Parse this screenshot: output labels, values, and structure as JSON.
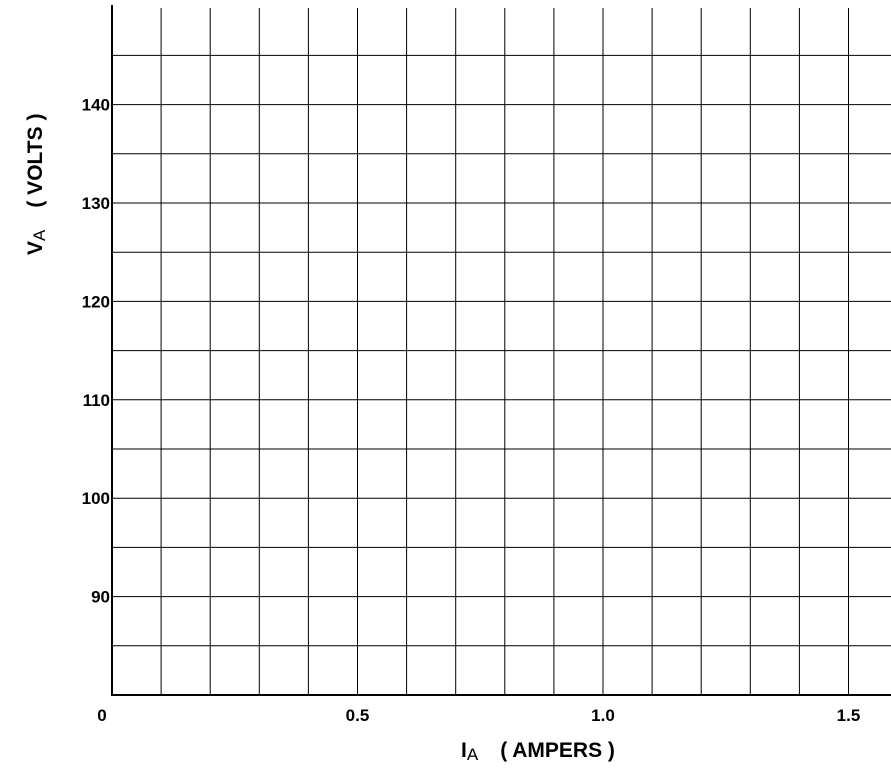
{
  "chart_data": {
    "type": "line",
    "title": "",
    "xlabel": {
      "symbol": "I",
      "subscript": "A",
      "unit": "( AMPERS )"
    },
    "ylabel": {
      "symbol": "V",
      "subscript": "A",
      "unit": "( VOLTS )"
    },
    "xlim": [
      0,
      1.58
    ],
    "ylim": [
      80,
      150
    ],
    "x_ticks": [
      {
        "value": 0,
        "label": "0"
      },
      {
        "value": 0.5,
        "label": "0.5"
      },
      {
        "value": 1.0,
        "label": "1.0"
      },
      {
        "value": 1.5,
        "label": "1.5"
      }
    ],
    "y_ticks": [
      {
        "value": 90,
        "label": "90"
      },
      {
        "value": 100,
        "label": "100"
      },
      {
        "value": 110,
        "label": "110"
      },
      {
        "value": 120,
        "label": "120"
      },
      {
        "value": 130,
        "label": "130"
      },
      {
        "value": 140,
        "label": "140"
      }
    ],
    "x_grid_step": 0.1,
    "y_grid_step": 5,
    "grid": true,
    "series": []
  }
}
